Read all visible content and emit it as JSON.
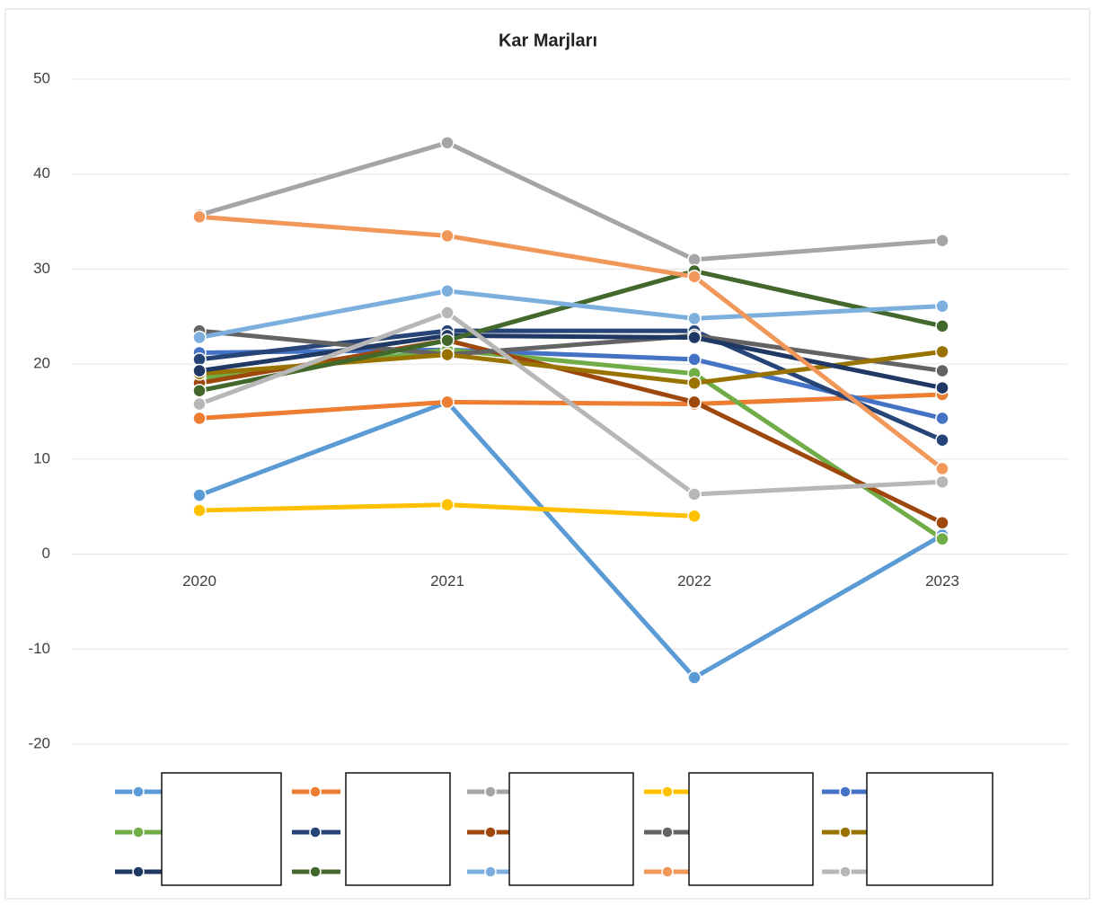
{
  "chart_data": {
    "type": "line",
    "title": "Kar Marjları",
    "categories": [
      "2020",
      "2021",
      "2022",
      "2023"
    ],
    "ylim": [
      -20,
      50
    ],
    "yticks": [
      -20,
      -10,
      0,
      10,
      20,
      30,
      40,
      50
    ],
    "grid": true,
    "series": [
      {
        "color": "#5b9bd5",
        "values": [
          6.2,
          16,
          -13,
          2
        ]
      },
      {
        "color": "#ed7d31",
        "values": [
          14.3,
          16,
          15.8,
          16.8
        ]
      },
      {
        "color": "#a5a5a5",
        "values": [
          35.7,
          43.3,
          31,
          33
        ]
      },
      {
        "color": "#ffc000",
        "values": [
          4.6,
          5.2,
          4,
          null
        ]
      },
      {
        "color": "#4472c4",
        "values": [
          21.2,
          21.5,
          20.5,
          14.3
        ]
      },
      {
        "color": "#70ad47",
        "values": [
          18.5,
          21.5,
          19,
          1.6
        ]
      },
      {
        "color": "#264478",
        "values": [
          20.5,
          23.5,
          23.5,
          12
        ]
      },
      {
        "color": "#9e480e",
        "values": [
          18,
          22.5,
          16,
          3.3
        ]
      },
      {
        "color": "#636363",
        "values": [
          23.5,
          21,
          23,
          19.3
        ]
      },
      {
        "color": "#997300",
        "values": [
          19,
          21,
          18,
          21.3
        ]
      },
      {
        "color": "#1f3864",
        "values": [
          19.3,
          23,
          22.8,
          17.5
        ]
      },
      {
        "color": "#43682b",
        "values": [
          17.2,
          22.5,
          29.8,
          24
        ]
      },
      {
        "color": "#7cafdd",
        "values": [
          22.8,
          27.7,
          24.8,
          26.1
        ]
      },
      {
        "color": "#f1975a",
        "values": [
          35.5,
          33.5,
          29.2,
          9
        ]
      },
      {
        "color": "#b7b7b7",
        "values": [
          15.8,
          25.4,
          6.3,
          7.6
        ]
      }
    ]
  }
}
